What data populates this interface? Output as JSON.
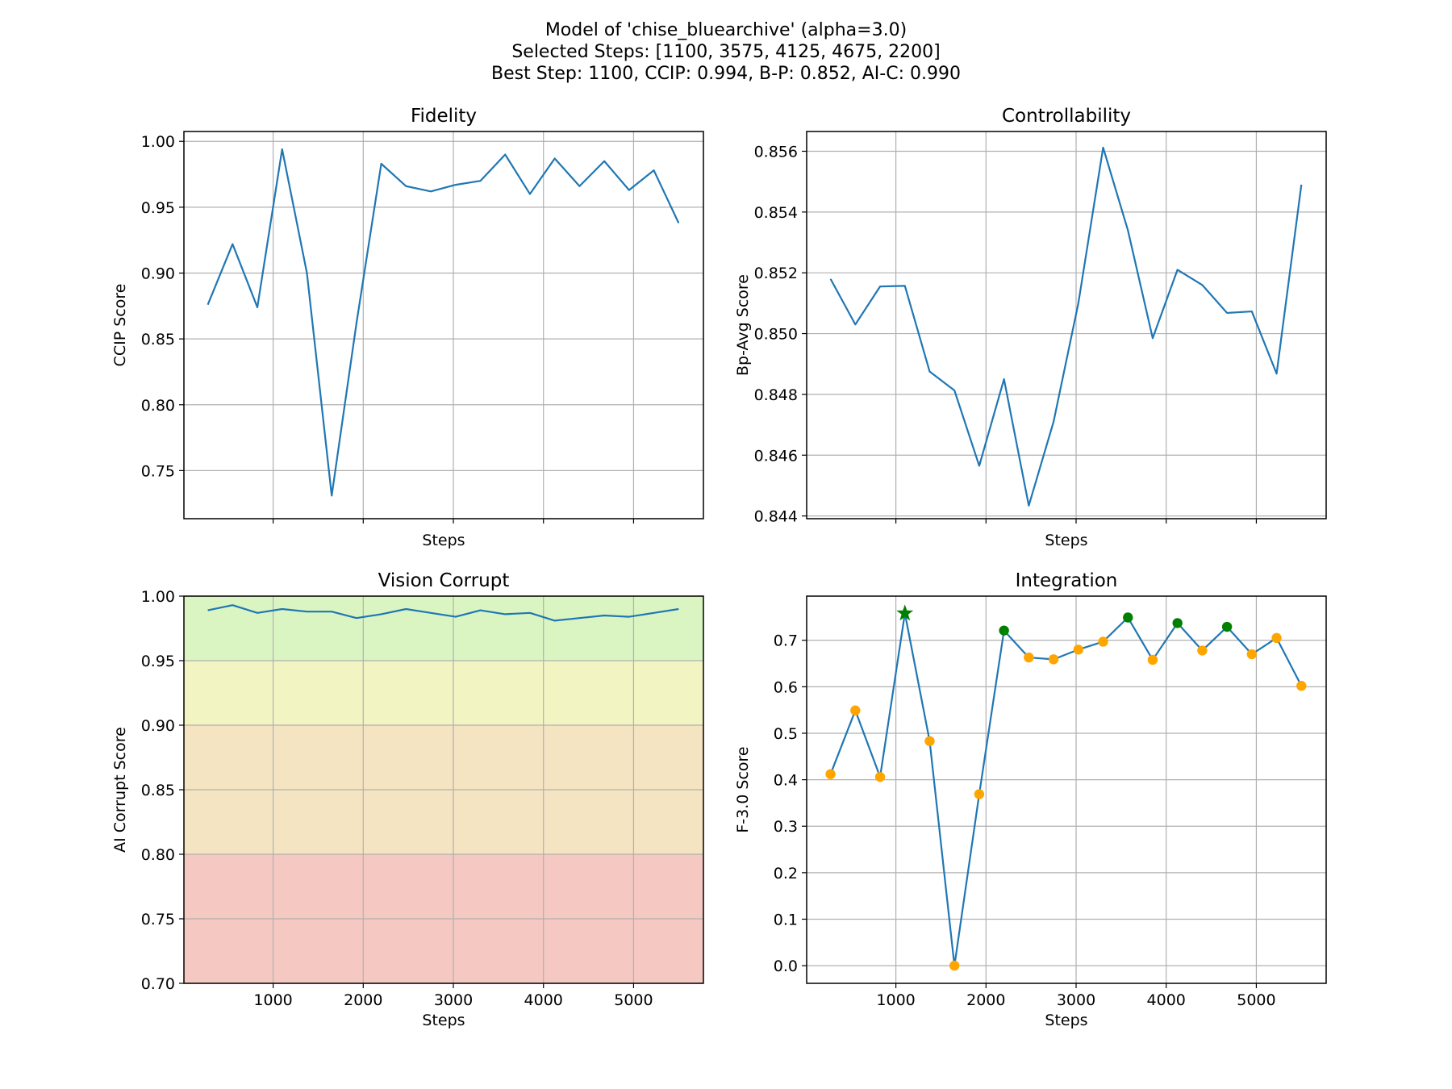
{
  "figure": {
    "title_lines": [
      "Model of 'chise_bluearchive' (alpha=3.0)",
      "Selected Steps: [1100, 3575, 4125, 4675, 2200]",
      "Best Step: 1100, CCIP: 0.994, B-P: 0.852, AI-C: 0.990"
    ]
  },
  "colors": {
    "line": "#1f77b4",
    "selected_marker": "#008000",
    "other_marker": "#ffa500",
    "best_marker": "#008000",
    "band_excellent": "#daf5c2",
    "band_good": "#f2f5c2",
    "band_fair": "#f5e4c2",
    "band_poor": "#f5c8c2"
  },
  "chart_data": [
    {
      "id": "fidelity",
      "type": "line",
      "title": "Fidelity",
      "xlabel": "Steps",
      "ylabel": "CCIP Score",
      "xlim": [
        10,
        5775
      ],
      "ylim": [
        0.7135,
        1.0075
      ],
      "xticks": [
        1000,
        2000,
        3000,
        4000,
        5000
      ],
      "show_xticklabels": false,
      "yticks": [
        0.75,
        0.8,
        0.85,
        0.9,
        0.95,
        1.0
      ],
      "ytick_labels": [
        "0.75",
        "0.80",
        "0.85",
        "0.90",
        "0.95",
        "1.00"
      ],
      "grid": true,
      "x": [
        275,
        550,
        825,
        1100,
        1375,
        1650,
        1925,
        2200,
        2475,
        2750,
        3025,
        3300,
        3575,
        3850,
        4125,
        4400,
        4675,
        4950,
        5225,
        5500
      ],
      "y": [
        0.876,
        0.922,
        0.874,
        0.994,
        0.9,
        0.731,
        0.862,
        0.983,
        0.966,
        0.962,
        0.967,
        0.97,
        0.99,
        0.96,
        0.987,
        0.966,
        0.985,
        0.963,
        0.978,
        0.938
      ]
    },
    {
      "id": "controllability",
      "type": "line",
      "title": "Controllability",
      "xlabel": "Steps",
      "ylabel": "Bp-Avg Score",
      "xlim": [
        10,
        5775
      ],
      "ylim": [
        0.84391,
        0.85665
      ],
      "xticks": [
        1000,
        2000,
        3000,
        4000,
        5000
      ],
      "show_xticklabels": false,
      "yticks": [
        0.844,
        0.846,
        0.848,
        0.85,
        0.852,
        0.854,
        0.856
      ],
      "ytick_labels": [
        "0.844",
        "0.846",
        "0.848",
        "0.850",
        "0.852",
        "0.854",
        "0.856"
      ],
      "grid": true,
      "x": [
        275,
        550,
        825,
        1100,
        1375,
        1650,
        1925,
        2200,
        2475,
        2750,
        3025,
        3300,
        3575,
        3850,
        4125,
        4400,
        4675,
        4950,
        5225,
        5500
      ],
      "y": [
        0.8518,
        0.8503,
        0.85155,
        0.85157,
        0.84875,
        0.84813,
        0.84565,
        0.8485,
        0.84434,
        0.8471,
        0.851,
        0.85612,
        0.8534,
        0.84985,
        0.8521,
        0.8516,
        0.85068,
        0.85073,
        0.84868,
        0.8549
      ]
    },
    {
      "id": "vision_corrupt",
      "type": "line",
      "title": "Vision Corrupt",
      "xlabel": "Steps",
      "ylabel": "AI Corrupt Score",
      "xlim": [
        10,
        5775
      ],
      "ylim": [
        0.7,
        1.0
      ],
      "xticks": [
        1000,
        2000,
        3000,
        4000,
        5000
      ],
      "xtick_labels": [
        "1000",
        "2000",
        "3000",
        "4000",
        "5000"
      ],
      "show_xticklabels": true,
      "yticks": [
        0.7,
        0.75,
        0.8,
        0.85,
        0.9,
        0.95,
        1.0
      ],
      "ytick_labels": [
        "0.70",
        "0.75",
        "0.80",
        "0.85",
        "0.90",
        "0.95",
        "1.00"
      ],
      "grid": true,
      "bands": [
        {
          "from": 0.95,
          "to": 1.0,
          "color_key": "band_excellent"
        },
        {
          "from": 0.9,
          "to": 0.95,
          "color_key": "band_good"
        },
        {
          "from": 0.8,
          "to": 0.9,
          "color_key": "band_fair"
        },
        {
          "from": 0.7,
          "to": 0.8,
          "color_key": "band_poor"
        }
      ],
      "x": [
        275,
        550,
        825,
        1100,
        1375,
        1650,
        1925,
        2200,
        2475,
        2750,
        3025,
        3300,
        3575,
        3850,
        4125,
        4400,
        4675,
        4950,
        5225,
        5500
      ],
      "y": [
        0.989,
        0.993,
        0.987,
        0.99,
        0.988,
        0.988,
        0.983,
        0.986,
        0.99,
        0.987,
        0.984,
        0.989,
        0.986,
        0.987,
        0.981,
        0.983,
        0.985,
        0.984,
        0.987,
        0.99
      ]
    },
    {
      "id": "integration",
      "type": "line",
      "title": "Integration",
      "xlabel": "Steps",
      "ylabel": "F-3.0 Score",
      "xlim": [
        10,
        5775
      ],
      "ylim": [
        -0.038,
        0.795
      ],
      "xticks": [
        1000,
        2000,
        3000,
        4000,
        5000
      ],
      "xtick_labels": [
        "1000",
        "2000",
        "3000",
        "4000",
        "5000"
      ],
      "show_xticklabels": true,
      "yticks": [
        0.0,
        0.1,
        0.2,
        0.3,
        0.4,
        0.5,
        0.6,
        0.7
      ],
      "ytick_labels": [
        "0.0",
        "0.1",
        "0.2",
        "0.3",
        "0.4",
        "0.5",
        "0.6",
        "0.7"
      ],
      "grid": true,
      "x": [
        275,
        550,
        825,
        1100,
        1375,
        1650,
        1925,
        2200,
        2475,
        2750,
        3025,
        3300,
        3575,
        3850,
        4125,
        4400,
        4675,
        4950,
        5225,
        5500
      ],
      "y": [
        0.412,
        0.549,
        0.406,
        0.758,
        0.483,
        0.0,
        0.369,
        0.721,
        0.663,
        0.659,
        0.68,
        0.697,
        0.749,
        0.658,
        0.737,
        0.678,
        0.729,
        0.67,
        0.705,
        0.602
      ],
      "selected_steps": [
        1100,
        3575,
        4125,
        4675,
        2200
      ],
      "best_step": 1100
    }
  ]
}
